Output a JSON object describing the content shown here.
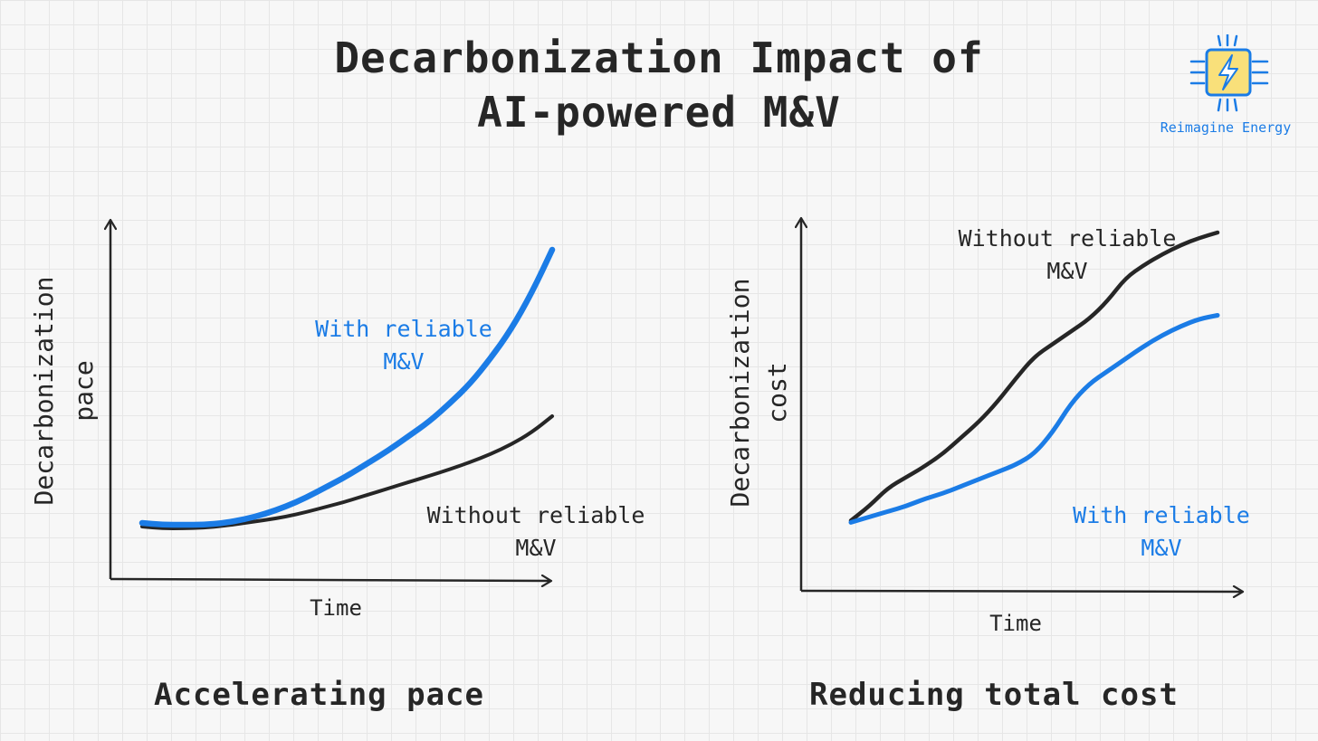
{
  "title": {
    "line1": "Decarbonization Impact of",
    "line2": "AI-powered M&V"
  },
  "logo": {
    "text": "Reimagine Energy",
    "icon": "lightning-chip-icon",
    "accent": "#1b7ce6",
    "fill": "#f9e07a"
  },
  "colors": {
    "with": "#1b7ce6",
    "without": "#262626"
  },
  "chart_data": [
    {
      "type": "line",
      "caption": "Accelerating pace",
      "xlabel": "Time",
      "ylabel_line1": "Decarbonization",
      "ylabel_line2": "pace",
      "axis_ticks": "none",
      "grid": false,
      "xlim": [
        0,
        10
      ],
      "ylim": [
        0,
        10
      ],
      "series": [
        {
          "name": "With reliable M&V",
          "label_line1": "With reliable",
          "label_line2": "M&V",
          "color": "#1b7ce6",
          "x": [
            0,
            0.5,
            1,
            1.5,
            2,
            2.5,
            3,
            3.5,
            4,
            4.5,
            5,
            5.5,
            6,
            6.5,
            7,
            7.5,
            8,
            8.5,
            9,
            9.5,
            10
          ],
          "values": [
            1.55,
            1.5,
            1.5,
            1.5,
            1.55,
            1.65,
            1.8,
            2.0,
            2.25,
            2.55,
            2.85,
            3.2,
            3.55,
            3.95,
            4.35,
            4.85,
            5.4,
            6.1,
            6.9,
            7.9,
            9.1
          ]
        },
        {
          "name": "Without reliable M&V",
          "label_line1": "Without reliable",
          "label_line2": "M&V",
          "color": "#262626",
          "x": [
            0,
            0.5,
            1,
            1.5,
            2,
            2.5,
            3,
            3.5,
            4,
            4.5,
            5,
            5.5,
            6,
            6.5,
            7,
            7.5,
            8,
            8.5,
            9,
            9.5,
            10
          ],
          "values": [
            1.45,
            1.4,
            1.4,
            1.42,
            1.47,
            1.55,
            1.63,
            1.72,
            1.85,
            2.0,
            2.15,
            2.33,
            2.5,
            2.68,
            2.85,
            3.03,
            3.23,
            3.45,
            3.72,
            4.05,
            4.5
          ]
        }
      ]
    },
    {
      "type": "line",
      "caption": "Reducing total cost",
      "xlabel": "Time",
      "ylabel_line1": "Decarbonization",
      "ylabel_line2": "cost",
      "axis_ticks": "none",
      "grid": false,
      "xlim": [
        0,
        10
      ],
      "ylim": [
        0,
        10
      ],
      "series": [
        {
          "name": "Without reliable M&V",
          "label_line1": "Without reliable",
          "label_line2": "M&V",
          "color": "#262626",
          "x": [
            0,
            0.5,
            1,
            1.5,
            2,
            2.5,
            3,
            3.5,
            4,
            4.5,
            5,
            5.5,
            6,
            6.5,
            7,
            7.5,
            8,
            8.5,
            9,
            9.5,
            10
          ],
          "values": [
            1.95,
            2.35,
            2.85,
            3.15,
            3.45,
            3.8,
            4.25,
            4.7,
            5.25,
            5.9,
            6.5,
            6.85,
            7.2,
            7.55,
            8.05,
            8.7,
            9.05,
            9.35,
            9.6,
            9.8,
            9.95
          ]
        },
        {
          "name": "With reliable M&V",
          "label_line1": "With reliable",
          "label_line2": "M&V",
          "color": "#1b7ce6",
          "x": [
            0,
            0.5,
            1,
            1.5,
            2,
            2.5,
            3,
            3.5,
            4,
            4.5,
            5,
            5.5,
            6,
            6.5,
            7,
            7.5,
            8,
            8.5,
            9,
            9.5,
            10
          ],
          "values": [
            1.9,
            2.05,
            2.2,
            2.35,
            2.55,
            2.7,
            2.9,
            3.1,
            3.3,
            3.5,
            3.8,
            4.4,
            5.2,
            5.75,
            6.1,
            6.45,
            6.8,
            7.1,
            7.35,
            7.55,
            7.65
          ]
        }
      ]
    }
  ]
}
